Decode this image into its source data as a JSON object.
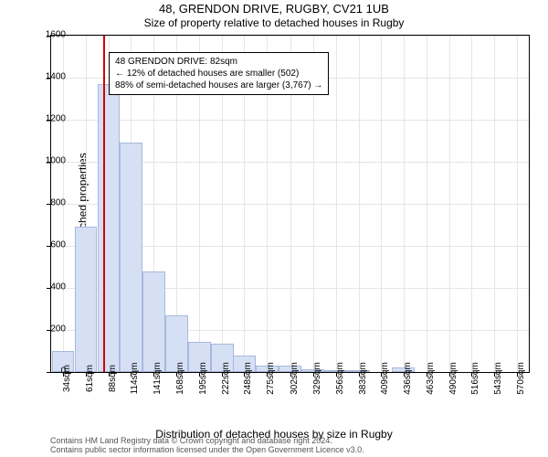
{
  "title_main": "48, GRENDON DRIVE, RUGBY, CV21 1UB",
  "title_sub": "Size of property relative to detached houses in Rugby",
  "y_label": "Number of detached properties",
  "x_label": "Distribution of detached houses by size in Rugby",
  "footer_line1": "Contains HM Land Registry data © Crown copyright and database right 2024.",
  "footer_line2": "Contains public sector information licensed under the Open Government Licence v3.0.",
  "chart": {
    "type": "histogram",
    "background_color": "#ffffff",
    "grid_color": "#e5e5e5",
    "bar_fill": "#d6e0f5",
    "bar_stroke": "#a8b8dd",
    "marker_color": "#d40000",
    "marker_x": 82,
    "xlim": [
      20,
      584
    ],
    "ylim": [
      0,
      1600
    ],
    "y_ticks": [
      0,
      200,
      400,
      600,
      800,
      1000,
      1200,
      1400,
      1600
    ],
    "x_ticks": [
      34,
      61,
      88,
      114,
      141,
      168,
      195,
      222,
      248,
      275,
      302,
      329,
      356,
      383,
      409,
      436,
      463,
      490,
      516,
      543,
      570
    ],
    "x_tick_suffix": "sqm",
    "bar_width_data": 26.8,
    "bars": [
      {
        "x": 34,
        "y": 100
      },
      {
        "x": 61,
        "y": 690
      },
      {
        "x": 88,
        "y": 1370
      },
      {
        "x": 114,
        "y": 1090
      },
      {
        "x": 141,
        "y": 480
      },
      {
        "x": 168,
        "y": 270
      },
      {
        "x": 195,
        "y": 145
      },
      {
        "x": 222,
        "y": 135
      },
      {
        "x": 248,
        "y": 80
      },
      {
        "x": 275,
        "y": 30
      },
      {
        "x": 302,
        "y": 30
      },
      {
        "x": 329,
        "y": 15
      },
      {
        "x": 356,
        "y": 10
      },
      {
        "x": 383,
        "y": 10
      },
      {
        "x": 409,
        "y": 0
      },
      {
        "x": 436,
        "y": 20
      },
      {
        "x": 463,
        "y": 0
      },
      {
        "x": 490,
        "y": 0
      },
      {
        "x": 516,
        "y": 0
      },
      {
        "x": 543,
        "y": 0
      },
      {
        "x": 570,
        "y": 0
      }
    ],
    "annotation": {
      "line1": "48 GRENDON DRIVE: 82sqm",
      "line2": "← 12% of detached houses are smaller (502)",
      "line3": "88% of semi-detached houses are larger (3,767) →",
      "x_data": 88,
      "y_data": 1520
    }
  }
}
